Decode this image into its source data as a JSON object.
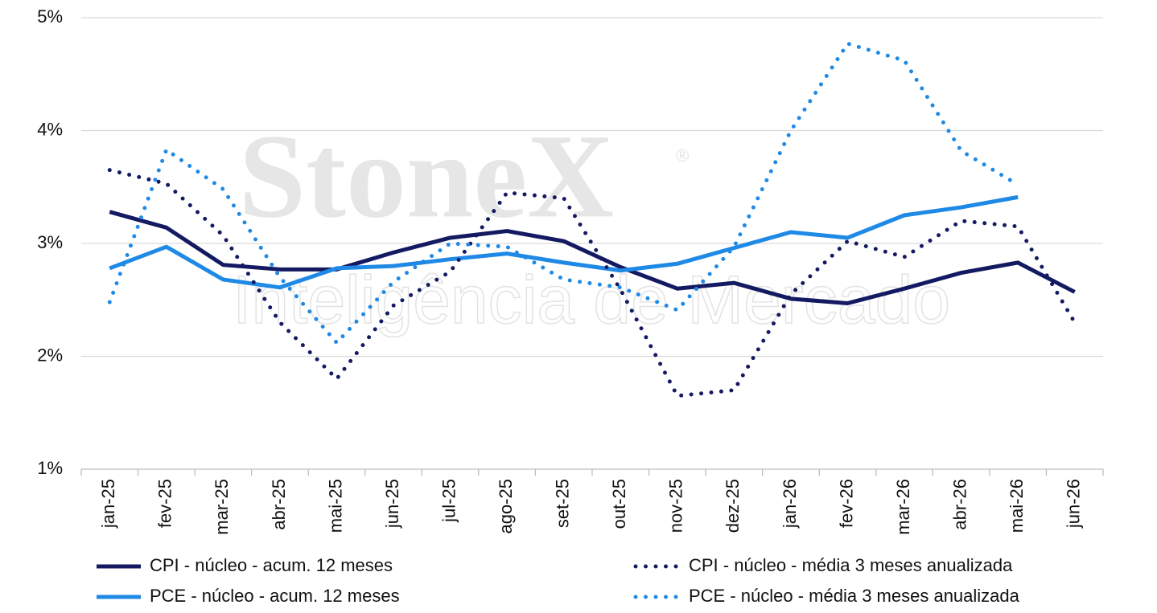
{
  "chart_data": {
    "type": "line",
    "watermark": {
      "brand": "StoneX",
      "mark": "®",
      "subtitle": "Inteligência de Mercado"
    },
    "categories": [
      "jan-25",
      "fev-25",
      "mar-25",
      "abr-25",
      "mai-25",
      "jun-25",
      "jul-25",
      "ago-25",
      "set-25",
      "out-25",
      "nov-25",
      "dez-25",
      "jan-26",
      "fev-26",
      "mar-26",
      "abr-26",
      "mai-26",
      "jun-26"
    ],
    "series": [
      {
        "name": "CPI - núcleo - acum. 12 meses",
        "color": "#141a62",
        "style": "solid",
        "values": [
          3.28,
          3.14,
          2.81,
          2.77,
          2.77,
          2.92,
          3.05,
          3.11,
          3.02,
          2.79,
          2.6,
          2.65,
          2.51,
          2.47,
          2.6,
          2.74,
          2.83,
          2.57
        ]
      },
      {
        "name": "PCE - núcleo - acum. 12 meses",
        "color": "#1f8ae6",
        "style": "solid",
        "values": [
          2.78,
          2.97,
          2.68,
          2.61,
          2.78,
          2.8,
          2.86,
          2.91,
          2.83,
          2.76,
          2.82,
          2.96,
          3.1,
          3.05,
          3.25,
          3.32,
          3.41,
          null
        ]
      },
      {
        "name": "CPI - núcleo - média 3 meses anualizada",
        "color": "#141a62",
        "style": "dotted",
        "values": [
          3.65,
          3.53,
          3.07,
          2.3,
          1.8,
          2.45,
          2.75,
          3.45,
          3.4,
          2.59,
          1.65,
          1.7,
          2.55,
          3.02,
          2.88,
          3.2,
          3.15,
          2.3
        ]
      },
      {
        "name": "PCE - núcleo - média 3 meses anualizada",
        "color": "#1f8ae6",
        "style": "dotted",
        "values": [
          2.48,
          3.83,
          3.48,
          2.7,
          2.12,
          2.66,
          3.0,
          2.97,
          2.68,
          2.61,
          2.41,
          2.97,
          4.0,
          4.77,
          4.62,
          3.82,
          3.52,
          null
        ]
      }
    ],
    "ylim": [
      1,
      5
    ],
    "yticks": [
      {
        "value": 1,
        "label": "1%"
      },
      {
        "value": 2,
        "label": "2%"
      },
      {
        "value": 3,
        "label": "3%"
      },
      {
        "value": 4,
        "label": "4%"
      },
      {
        "value": 5,
        "label": "5%"
      }
    ],
    "grid": true
  }
}
